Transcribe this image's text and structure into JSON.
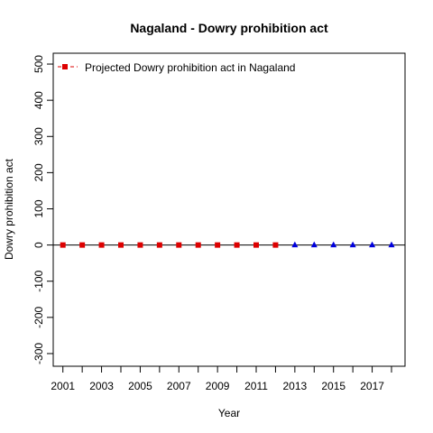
{
  "chart_data": {
    "type": "scatter",
    "title": "Nagaland  -  Dowry prohibition act",
    "xlabel": "Year",
    "ylabel": "Dowry prohibition act",
    "xlim": [
      2000.5,
      2018.7
    ],
    "ylim": [
      -335,
      530
    ],
    "x_ticks": [
      2001,
      2003,
      2005,
      2007,
      2009,
      2011,
      2013,
      2015,
      2017
    ],
    "y_ticks": [
      -300,
      -200,
      -100,
      0,
      100,
      200,
      300,
      400,
      500
    ],
    "reference_line": {
      "y": 0
    },
    "legend": {
      "position": "top-left",
      "entries": [
        {
          "label": "Projected  Dowry prohibition act  in  Nagaland",
          "color": "#dd0000",
          "marker": "square",
          "line": "dashed"
        }
      ]
    },
    "series": [
      {
        "color": "#dd0000",
        "marker": "square",
        "x": [
          2001,
          2002,
          2003,
          2004,
          2005,
          2006,
          2007,
          2008,
          2009,
          2010,
          2011,
          2012
        ],
        "values": [
          0,
          0,
          0,
          0,
          0,
          0,
          0,
          0,
          0,
          0,
          0,
          0
        ]
      },
      {
        "color": "#0000dd",
        "marker": "triangle",
        "x": [
          2013,
          2014,
          2015,
          2016,
          2017,
          2018
        ],
        "values": [
          0,
          0,
          0,
          0,
          0,
          0
        ]
      }
    ]
  }
}
